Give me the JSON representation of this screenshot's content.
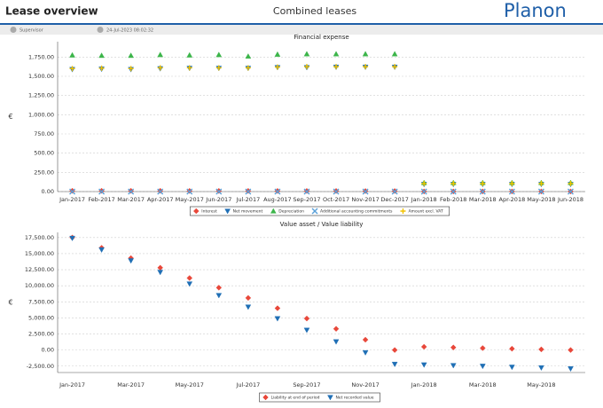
{
  "header": {
    "title": "Lease overview",
    "subtitle": "Combined leases",
    "brand": "Planon"
  },
  "toolbar": {
    "user": "Supervisor",
    "timestamp": "24-Jul-2023 08:02:32"
  },
  "chart_data": [
    {
      "type": "scatter",
      "title": "Financial expense",
      "y_label": "€",
      "categories": [
        "Jan-2017",
        "Feb-2017",
        "Mar-2017",
        "Apr-2017",
        "May-2017",
        "Jun-2017",
        "Jul-2017",
        "Aug-2017",
        "Sep-2017",
        "Oct-2017",
        "Nov-2017",
        "Dec-2017",
        "Jan-2018",
        "Feb-2018",
        "Mar-2018",
        "Apr-2018",
        "May-2018",
        "Jun-2018"
      ],
      "series": [
        {
          "name": "Interest",
          "color": "#e8473a",
          "marker": "diamond",
          "values": [
            10,
            10,
            10,
            10,
            9,
            9,
            9,
            8,
            8,
            8,
            7,
            7,
            2,
            2,
            2,
            2,
            2,
            2
          ]
        },
        {
          "name": "Net movement",
          "color": "#1f6fb5",
          "marker": "triangle-down",
          "values": [
            1590,
            1595,
            1590,
            1600,
            1605,
            1605,
            1605,
            1615,
            1615,
            1620,
            1620,
            1620,
            95,
            95,
            95,
            95,
            95,
            95
          ]
        },
        {
          "name": "Depreciation",
          "color": "#3cb54a",
          "marker": "triangle-up",
          "values": [
            1775,
            1770,
            1770,
            1780,
            1775,
            1780,
            1760,
            1785,
            1790,
            1790,
            1790,
            1790,
            115,
            115,
            115,
            115,
            115,
            115
          ]
        },
        {
          "name": "Additional accounting commitments",
          "color": "#5aa0d8",
          "marker": "x",
          "values": [
            0,
            0,
            0,
            0,
            0,
            0,
            0,
            0,
            0,
            0,
            0,
            0,
            0,
            0,
            0,
            0,
            0,
            0
          ]
        },
        {
          "name": "Amount excl. VAT",
          "color": "#f2c200",
          "marker": "plus",
          "values": [
            1600,
            1605,
            1600,
            1610,
            1610,
            1610,
            1610,
            1620,
            1625,
            1625,
            1625,
            1625,
            105,
            105,
            105,
            105,
            105,
            105
          ]
        }
      ],
      "ylim": [
        0,
        1950
      ],
      "yticks": [
        {
          "value": 0,
          "label": "0.00"
        },
        {
          "value": 250,
          "label": "250.00"
        },
        {
          "value": 500,
          "label": "500.00"
        },
        {
          "value": 750,
          "label": "750.00"
        },
        {
          "value": 1000,
          "label": "1,000.00"
        },
        {
          "value": 1250,
          "label": "1,250.00"
        },
        {
          "value": 1500,
          "label": "1,500.00"
        },
        {
          "value": 1750,
          "label": "1,750.00"
        }
      ],
      "grid": true
    },
    {
      "type": "scatter",
      "title": "Value asset / Value liability",
      "y_label": "€",
      "categories": [
        "Jan-2017",
        null,
        "Mar-2017",
        null,
        "May-2017",
        null,
        "Jul-2017",
        null,
        "Sep-2017",
        null,
        "Nov-2017",
        null,
        "Jan-2018",
        null,
        "Mar-2018",
        null,
        "May-2018",
        null
      ],
      "series": [
        {
          "name": "Liability at end of period",
          "color": "#e8473a",
          "marker": "diamond",
          "values": [
            17500,
            15900,
            14300,
            12800,
            11200,
            9700,
            8100,
            6500,
            4900,
            3300,
            1600,
            0,
            500,
            400,
            300,
            200,
            100,
            0
          ]
        },
        {
          "name": "Net recorded value",
          "color": "#1f6fb5",
          "marker": "triangle-down",
          "values": [
            17400,
            15600,
            13900,
            12100,
            10300,
            8500,
            6700,
            4900,
            3100,
            1300,
            -400,
            -2200,
            -2300,
            -2400,
            -2500,
            -2650,
            -2750,
            -2900
          ]
        }
      ],
      "ylim": [
        -3500,
        18300
      ],
      "yticks": [
        {
          "value": -2500,
          "label": "-2,500.00"
        },
        {
          "value": 0,
          "label": "0.00"
        },
        {
          "value": 2500,
          "label": "2,500.00"
        },
        {
          "value": 5000,
          "label": "5,000.00"
        },
        {
          "value": 7500,
          "label": "7,500.00"
        },
        {
          "value": 10000,
          "label": "10,000.00"
        },
        {
          "value": 12500,
          "label": "12,500.00"
        },
        {
          "value": 15000,
          "label": "15,000.00"
        },
        {
          "value": 17500,
          "label": "17,500.00"
        }
      ],
      "grid": true
    }
  ]
}
